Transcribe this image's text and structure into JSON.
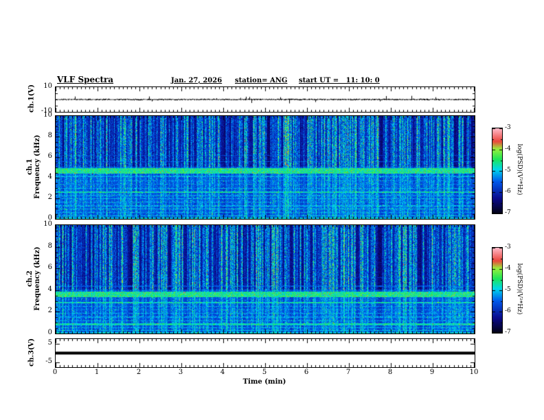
{
  "header": {
    "title": "VLF Spectra",
    "date": "Jan. 27, 2026",
    "station": "station= ANG",
    "start_ut": "start UT =   11: 10: 0"
  },
  "xaxis": {
    "label": "Time (min)",
    "ticks": [
      0,
      1,
      2,
      3,
      4,
      5,
      6,
      7,
      8,
      9,
      10
    ],
    "range": [
      0,
      10
    ]
  },
  "colorbar": {
    "label": "log(PSD)(V²*Hz)",
    "ticks": [
      -3,
      -4,
      -5,
      -6,
      -7
    ],
    "range": [
      -7,
      -3
    ]
  },
  "colors": {
    "background": "#ffffff",
    "axis": "#000000",
    "colormap_stops": [
      [
        0.0,
        2,
        2,
        18
      ],
      [
        0.18,
        10,
        10,
        140
      ],
      [
        0.38,
        0,
        90,
        235
      ],
      [
        0.52,
        0,
        215,
        235
      ],
      [
        0.64,
        30,
        230,
        90
      ],
      [
        0.76,
        150,
        240,
        60
      ],
      [
        0.85,
        235,
        70,
        60
      ],
      [
        1.0,
        255,
        185,
        200
      ]
    ]
  },
  "chart_data": [
    {
      "type": "line",
      "panel": "ch1-waveform",
      "ylabel": "ch.1(V)",
      "ylim": [
        -10,
        10
      ],
      "yticks": [
        10,
        -10
      ],
      "xlim": [
        0,
        10
      ],
      "summary": "Dense noisy voltage trace centered at 0 V, typical amplitude about ±1 V with sparse spikes to about ±3.5 V across the full 10 minutes",
      "noise_v": 0.7,
      "spike_rate": 0.04,
      "spike_v": 3.2,
      "seed": 11
    },
    {
      "type": "heatmap",
      "panel": "ch1-spectrogram",
      "ylabel_lines": [
        "ch.1",
        "Frequency (kHz)"
      ],
      "ylim": [
        0,
        10
      ],
      "yticks": [
        10,
        8,
        6,
        4,
        2,
        0
      ],
      "xlim": [
        0,
        10
      ],
      "zlabel": "log(PSD)(V²*Hz)",
      "zlim": [
        -7,
        -3
      ],
      "summary": "VLF spectrogram 0-10 kHz over 10 min: near-black background above ~5 kHz crossed by dense vertical sferic streaks (blue-cyan-green); brighter blue background below 5 kHz with many horizontal narrowband lines; strong cyan band near 4.7 kHz",
      "base_low": 0.24,
      "base_high": 0.07,
      "split_khz": 5.1,
      "noise": 0.12,
      "streak_density": 0.88,
      "seed": 42,
      "bands": [
        {
          "f": 0.08,
          "w": 0.14,
          "i": 0.5
        },
        {
          "f": 0.35,
          "w": 0.08,
          "i": 0.48
        },
        {
          "f": 0.65,
          "w": 0.08,
          "i": 0.45
        },
        {
          "f": 1.0,
          "w": 0.08,
          "i": 0.5
        },
        {
          "f": 1.3,
          "w": 0.07,
          "i": 0.45
        },
        {
          "f": 1.65,
          "w": 0.08,
          "i": 0.44
        },
        {
          "f": 2.0,
          "w": 0.07,
          "i": 0.46
        },
        {
          "f": 2.3,
          "w": 0.07,
          "i": 0.42
        },
        {
          "f": 2.65,
          "w": 0.1,
          "i": 0.55
        },
        {
          "f": 3.0,
          "w": 0.08,
          "i": 0.46
        },
        {
          "f": 3.4,
          "w": 0.07,
          "i": 0.4
        },
        {
          "f": 3.75,
          "w": 0.08,
          "i": 0.42
        },
        {
          "f": 4.15,
          "w": 0.1,
          "i": 0.45
        },
        {
          "f": 4.7,
          "w": 0.55,
          "i": 0.6
        },
        {
          "f": 5.6,
          "w": 0.09,
          "i": 0.35
        },
        {
          "f": 6.2,
          "w": 0.07,
          "i": 0.3
        }
      ]
    },
    {
      "type": "heatmap",
      "panel": "ch2-spectrogram",
      "ylabel_lines": [
        "ch.2",
        "Frequency (kHz)"
      ],
      "ylim": [
        0,
        10
      ],
      "yticks": [
        10,
        8,
        6,
        4,
        2,
        0
      ],
      "xlim": [
        0,
        10
      ],
      "zlabel": "log(PSD)(V²*Hz)",
      "zlim": [
        -7,
        -3
      ],
      "summary": "VLF spectrogram 0-10 kHz over 10 min: dark background above ~4 kHz with dense vertical sferic streaks; brighter blue below 4 kHz with horizontal narrowband lines; strong cyan-green band near 3.65 kHz and bright line near 2.9 kHz",
      "base_low": 0.24,
      "base_high": 0.07,
      "split_khz": 4.1,
      "noise": 0.12,
      "streak_density": 0.88,
      "seed": 77,
      "bands": [
        {
          "f": 0.08,
          "w": 0.14,
          "i": 0.5
        },
        {
          "f": 0.3,
          "w": 0.08,
          "i": 0.48
        },
        {
          "f": 0.55,
          "w": 0.08,
          "i": 0.45
        },
        {
          "f": 0.9,
          "w": 0.16,
          "i": 0.55
        },
        {
          "f": 1.2,
          "w": 0.08,
          "i": 0.46
        },
        {
          "f": 1.55,
          "w": 0.07,
          "i": 0.44
        },
        {
          "f": 1.9,
          "w": 0.08,
          "i": 0.46
        },
        {
          "f": 2.2,
          "w": 0.07,
          "i": 0.42
        },
        {
          "f": 2.55,
          "w": 0.08,
          "i": 0.44
        },
        {
          "f": 2.9,
          "w": 0.14,
          "i": 0.55
        },
        {
          "f": 3.65,
          "w": 0.5,
          "i": 0.6
        },
        {
          "f": 4.4,
          "w": 0.08,
          "i": 0.35
        },
        {
          "f": 5.2,
          "w": 0.07,
          "i": 0.26
        },
        {
          "f": 6.6,
          "w": 0.06,
          "i": 0.22
        }
      ]
    },
    {
      "type": "line",
      "panel": "ch3-waveform",
      "ylabel": "ch.3(V)",
      "ylim": [
        -7.5,
        7.5
      ],
      "yticks": [
        5,
        -5
      ],
      "xlim": [
        0,
        10
      ],
      "summary": "Flat thick black trace constant at 0 V for the whole interval (dead/saturated channel)",
      "line_value": 0,
      "thickness_v": 1.5,
      "seed": 7
    }
  ]
}
